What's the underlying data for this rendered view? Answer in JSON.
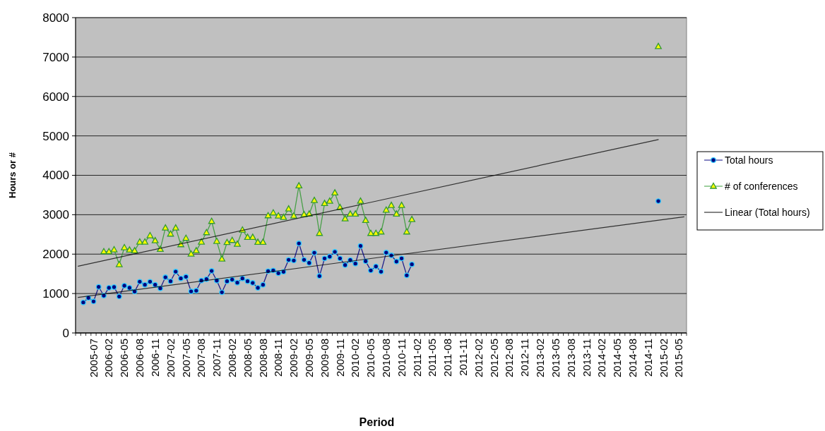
{
  "chart_data": {
    "type": "line",
    "xlabel": "Period",
    "ylabel": "Hours or #",
    "categories": [
      null,
      null,
      null,
      "2005-07",
      null,
      null,
      "2006-02",
      null,
      null,
      "2006-05",
      null,
      null,
      "2006-08",
      null,
      null,
      "2006-11",
      null,
      null,
      "2007-02",
      null,
      null,
      "2007-05",
      null,
      null,
      "2007-08",
      null,
      null,
      "2007-11",
      null,
      null,
      "2008-02",
      null,
      null,
      "2008-05",
      null,
      null,
      "2008-08",
      null,
      null,
      "2008-11",
      null,
      null,
      "2009-02",
      null,
      null,
      "2009-05",
      null,
      null,
      "2009-08",
      null,
      null,
      "2009-11",
      null,
      null,
      "2010-02",
      null,
      null,
      "2010-05",
      null,
      null,
      "2010-08",
      null,
      null,
      "2010-11",
      null,
      null,
      "2011-02",
      null,
      null,
      "2011-05",
      null,
      null,
      "2011-08",
      null,
      null,
      "2011-11",
      null,
      null,
      "2012-02",
      null,
      null,
      "2012-05",
      null,
      null,
      "2012-08",
      null,
      null,
      "2012-11",
      null,
      null,
      "2013-02",
      null,
      null,
      "2013-05",
      null,
      null,
      "2013-08",
      null,
      null,
      "2013-11",
      null,
      null,
      "2014-02",
      null,
      null,
      "2014-05",
      null,
      null,
      "2014-08",
      null,
      null,
      "2014-11",
      null,
      null,
      "2015-02",
      null,
      null,
      "2015-05",
      null
    ],
    "ylim": [
      0,
      8000
    ],
    "yticks": [
      0,
      1000,
      2000,
      3000,
      4000,
      5000,
      6000,
      7000,
      8000
    ],
    "grid": "y",
    "legend": "right",
    "series": [
      {
        "name": "Total hours",
        "color": "#000080",
        "marker": "circle",
        "values": [
          null,
          775,
          889,
          800,
          1168,
          948,
          1145,
          1163,
          925,
          1199,
          1145,
          1050,
          1300,
          1222,
          1300,
          1222,
          1133,
          1413,
          1312,
          1556,
          1383,
          1426,
          1055,
          1073,
          1329,
          1365,
          1574,
          1329,
          1032,
          1312,
          1354,
          1276,
          1383,
          1312,
          1270,
          1145,
          1222,
          1569,
          1587,
          1515,
          1551,
          1855,
          1837,
          2272,
          1855,
          1776,
          2034,
          1444,
          1891,
          1937,
          2057,
          1891,
          1723,
          1848,
          1759,
          2206,
          1819,
          1587,
          1687,
          1556,
          2039,
          1968,
          1812,
          1891,
          1461,
          1741,
          null,
          null,
          null,
          null,
          null,
          null,
          null,
          null,
          null,
          null,
          null,
          null,
          null,
          null,
          null,
          null,
          null,
          null,
          null,
          null,
          null,
          null,
          null,
          null,
          null,
          null,
          null,
          null,
          null,
          null,
          null,
          null,
          null,
          null,
          null,
          null,
          null,
          null,
          null,
          null,
          null,
          null,
          null,
          null,
          null,
          null,
          null,
          3345,
          null,
          null,
          null,
          null,
          null
        ]
      },
      {
        "name": "# of conferences",
        "color": "#339933",
        "marker": "triangle",
        "values": [
          null,
          null,
          null,
          null,
          null,
          2063,
          2063,
          2111,
          1735,
          2165,
          2105,
          2087,
          2308,
          2308,
          2469,
          2343,
          2123,
          2665,
          2510,
          2665,
          2242,
          2403,
          2004,
          2087,
          2308,
          2546,
          2832,
          2326,
          1878,
          2296,
          2349,
          2254,
          2612,
          2428,
          2428,
          2302,
          2302,
          2975,
          3047,
          2970,
          2934,
          3148,
          2970,
          3733,
          3005,
          3017,
          3363,
          2528,
          3286,
          3345,
          3554,
          3184,
          2898,
          3017,
          3017,
          3345,
          2857,
          2528,
          2528,
          2564,
          3118,
          3238,
          3017,
          3238,
          2564,
          2880,
          null,
          null,
          null,
          null,
          null,
          null,
          null,
          null,
          null,
          null,
          null,
          null,
          null,
          null,
          null,
          null,
          null,
          null,
          null,
          null,
          null,
          null,
          null,
          null,
          null,
          null,
          null,
          null,
          null,
          null,
          null,
          null,
          null,
          null,
          null,
          null,
          null,
          null,
          null,
          null,
          null,
          null,
          null,
          null,
          null,
          null,
          null,
          7268,
          null,
          null,
          null,
          null,
          null
        ]
      },
      {
        "name": "Linear (Total hours)",
        "color": "#000000",
        "marker": "none",
        "values": [
          900,
          null,
          null,
          null,
          null,
          null,
          null,
          null,
          null,
          null,
          null,
          null,
          null,
          null,
          null,
          null,
          null,
          null,
          null,
          null,
          null,
          null,
          null,
          null,
          null,
          null,
          null,
          null,
          null,
          null,
          null,
          null,
          null,
          null,
          null,
          null,
          null,
          null,
          null,
          null,
          null,
          null,
          null,
          null,
          null,
          null,
          null,
          null,
          null,
          null,
          null,
          null,
          null,
          null,
          null,
          null,
          null,
          null,
          null,
          null,
          null,
          null,
          null,
          null,
          null,
          null,
          null,
          null,
          null,
          null,
          null,
          null,
          null,
          null,
          null,
          null,
          null,
          null,
          null,
          null,
          null,
          null,
          null,
          null,
          null,
          null,
          null,
          null,
          null,
          null,
          null,
          null,
          null,
          null,
          null,
          null,
          null,
          null,
          null,
          null,
          null,
          null,
          null,
          null,
          null,
          null,
          null,
          null,
          null,
          null,
          null,
          null,
          null,
          null,
          null,
          null,
          null,
          null,
          2946
        ]
      },
      {
        "color": "#000000",
        "marker": "none",
        "values": [
          1694,
          null,
          null,
          null,
          null,
          null,
          null,
          null,
          null,
          null,
          null,
          null,
          null,
          null,
          null,
          null,
          null,
          null,
          null,
          null,
          null,
          null,
          null,
          null,
          null,
          null,
          null,
          null,
          null,
          null,
          null,
          null,
          null,
          null,
          null,
          null,
          null,
          null,
          null,
          null,
          null,
          null,
          null,
          null,
          null,
          null,
          null,
          null,
          null,
          null,
          null,
          null,
          null,
          null,
          null,
          null,
          null,
          null,
          null,
          null,
          null,
          null,
          null,
          null,
          null,
          null,
          null,
          null,
          null,
          null,
          null,
          null,
          null,
          null,
          null,
          null,
          null,
          null,
          null,
          null,
          null,
          null,
          null,
          null,
          null,
          null,
          null,
          null,
          null,
          null,
          null,
          null,
          null,
          null,
          null,
          null,
          null,
          null,
          null,
          null,
          null,
          null,
          null,
          null,
          null,
          null,
          null,
          null,
          null,
          null,
          null,
          null,
          null,
          4907,
          null,
          null,
          null,
          null,
          null
        ]
      }
    ]
  }
}
